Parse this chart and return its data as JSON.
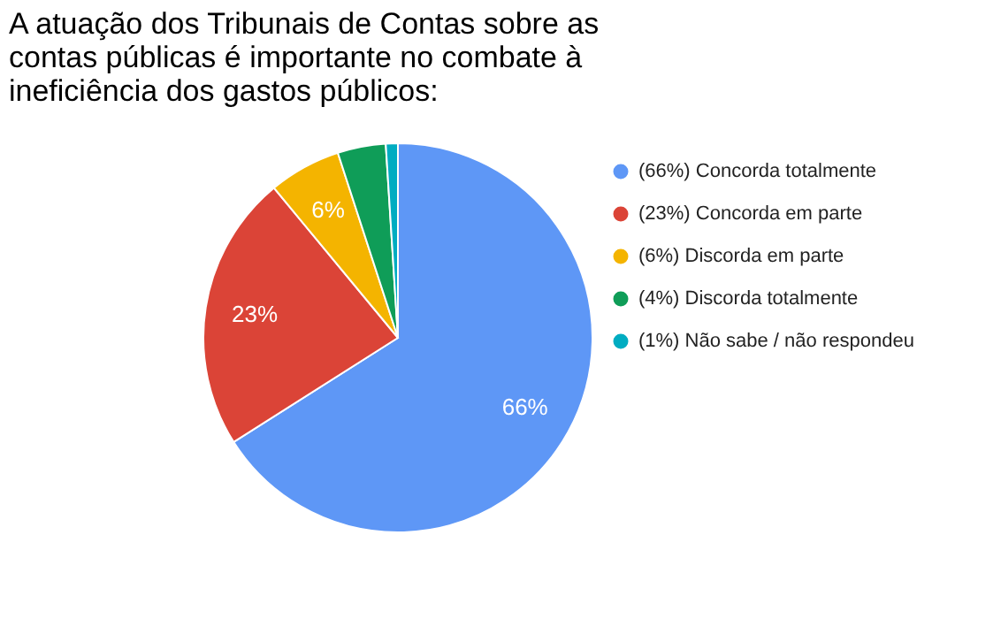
{
  "chart_data": {
    "type": "pie",
    "title": "A atuação dos Tribunais de Contas sobre as contas públicas é importante no combate à ineficiência dos gastos públicos:",
    "categories": [
      "(66%) Concorda totalmente",
      "(23%) Concorda em parte",
      "(6%) Discorda em parte",
      "(4%) Discorda totalmente",
      "(1%) Não sabe / não respondeu"
    ],
    "values": [
      66,
      23,
      6,
      4,
      1
    ],
    "colors": [
      "#5e97f6",
      "#db4437",
      "#f4b400",
      "#0f9d58",
      "#00acc1"
    ],
    "value_labels": [
      "66%",
      "23%",
      "6%",
      null,
      null
    ],
    "legend": "right"
  }
}
